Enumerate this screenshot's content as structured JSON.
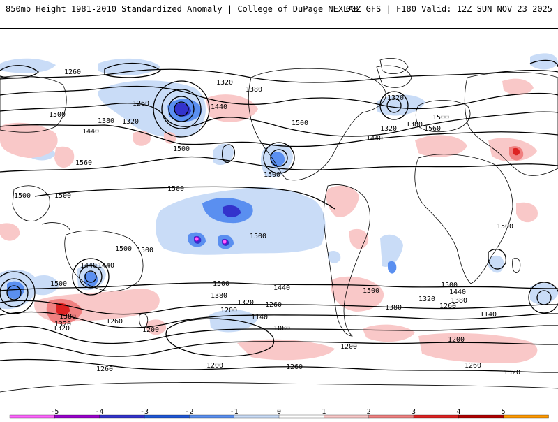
{
  "header": {
    "title_left": "850mb Height 1981-2010 Standardized Anomaly | College of DuPage NEXLAB",
    "title_right": "00Z GFS | F180 Valid: 12Z SUN NOV 23 2025"
  },
  "colorbar": {
    "tick_labels": [
      "-5",
      "-4",
      "-3",
      "-2",
      "-1",
      "0",
      "1",
      "2",
      "3",
      "4",
      "5"
    ],
    "colors": [
      "#ff66ff",
      "#9900cc",
      "#3333cc",
      "#1e56d6",
      "#5a8ff0",
      "#c9dcf7",
      "#ffffff",
      "#f9c8c8",
      "#f08080",
      "#dd2222",
      "#b00000",
      "#ff9900"
    ]
  },
  "contour_labels": [
    "1260",
    "1320",
    "1380",
    "1500",
    "1440",
    "1380",
    "1320",
    "1260",
    "1560",
    "1500",
    "1500",
    "1440",
    "1320",
    "1320",
    "1380",
    "1500",
    "1440",
    "1560",
    "1500",
    "1500",
    "1500",
    "1500",
    "1500",
    "1500",
    "1500",
    "1440",
    "1500",
    "1500",
    "1440",
    "1500",
    "1380",
    "1320",
    "1260",
    "1200",
    "1140",
    "1080",
    "1200",
    "1260",
    "1320",
    "1380",
    "1440",
    "1500",
    "1200",
    "1260",
    "1140",
    "1200",
    "1260",
    "1320",
    "1200",
    "1260",
    "1260",
    "1320",
    "1380",
    "1320",
    "1440",
    "1380",
    "1500"
  ]
}
